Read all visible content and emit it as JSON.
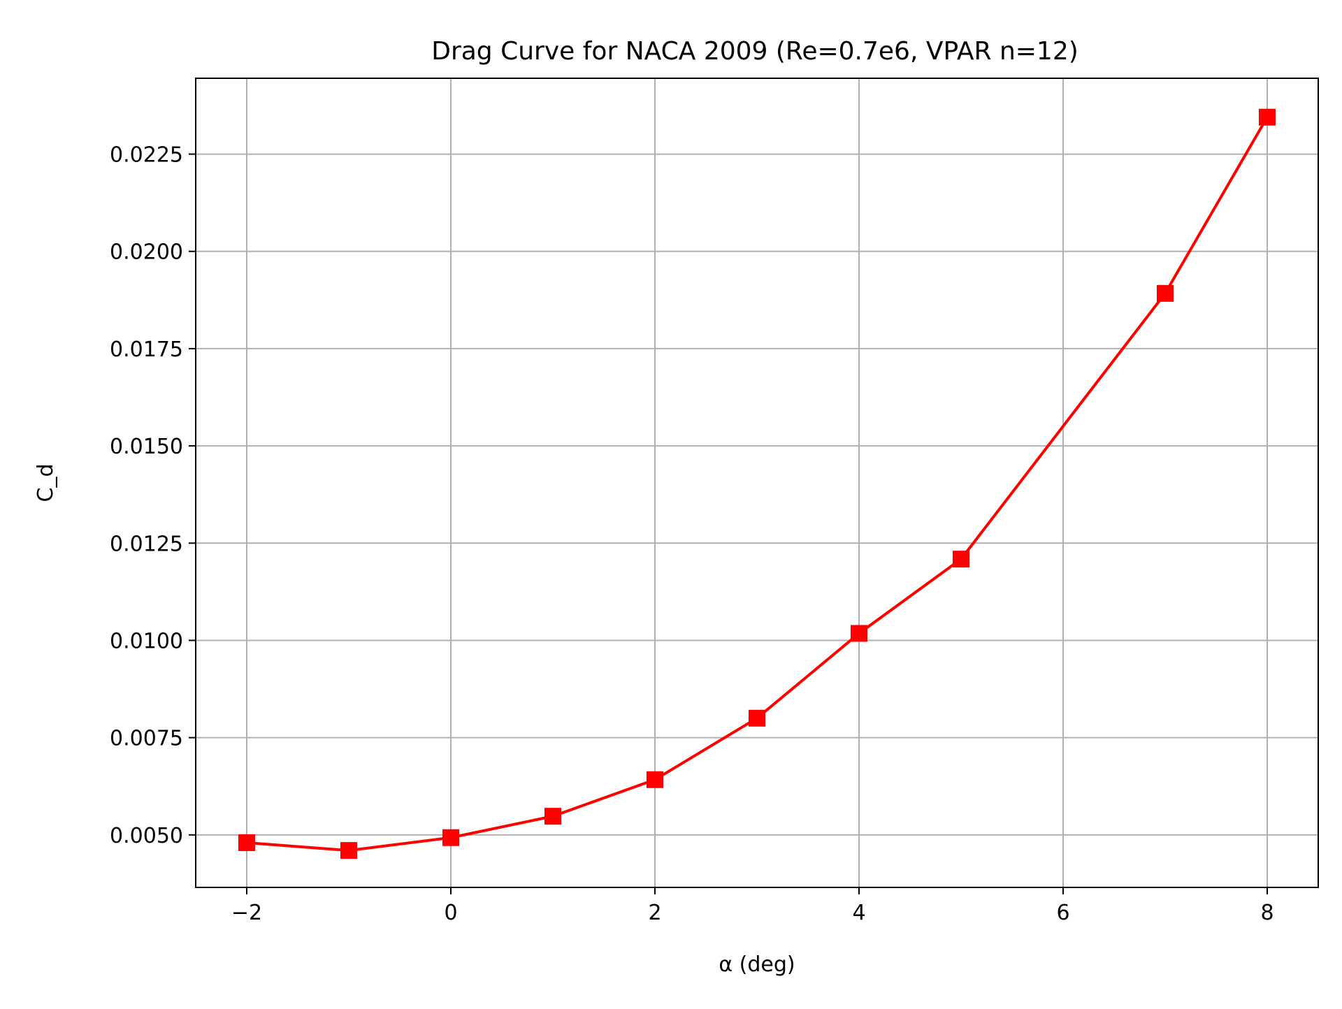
{
  "chart_data": {
    "type": "line",
    "title": "Drag Curve for NACA 2009 (Re=0.7e6, VPAR n=12)",
    "xlabel": "α (deg)",
    "ylabel": "C_d",
    "xlim": [
      -2.5,
      8.5
    ],
    "ylim": [
      0.00365,
      0.02445
    ],
    "x_ticks": [
      -2,
      0,
      2,
      4,
      6,
      8
    ],
    "x_tick_labels": [
      "−2",
      "0",
      "2",
      "4",
      "6",
      "8"
    ],
    "y_ticks": [
      0.005,
      0.0075,
      0.01,
      0.0125,
      0.015,
      0.0175,
      0.02,
      0.0225
    ],
    "y_tick_labels": [
      "0.0050",
      "0.0075",
      "0.0100",
      "0.0125",
      "0.0150",
      "0.0175",
      "0.0200",
      "0.0225"
    ],
    "grid": true,
    "series": [
      {
        "color": "#ff0000",
        "marker": "square",
        "x": [
          -2,
          -1,
          0,
          1,
          2,
          3,
          4,
          5,
          7,
          8
        ],
        "y": [
          0.0048,
          0.0046,
          0.00493,
          0.00548,
          0.00642,
          0.008,
          0.01018,
          0.01209,
          0.01892,
          0.02345
        ]
      }
    ]
  }
}
